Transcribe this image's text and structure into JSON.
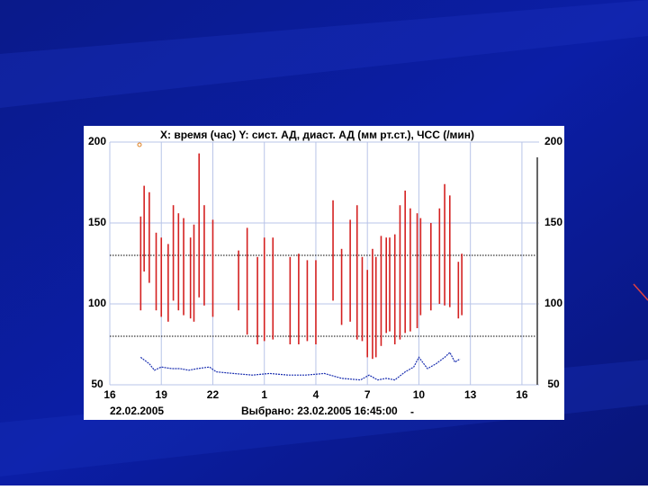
{
  "chart_data": {
    "type": "range_bar",
    "title": "X: время (час)  Y: сист. АД, диаст. АД (мм рт.ст.), ЧСС (/мин)",
    "date_left": "22.02.2005",
    "selected": "Выбрано: 23.02.2005  16:45:00",
    "selected_suffix": "-",
    "xlim": [
      16,
      41
    ],
    "xticks": [
      16,
      19,
      22,
      {
        "value": 25,
        "label": "1"
      },
      {
        "value": 28,
        "label": "4"
      },
      {
        "value": 31,
        "label": "7"
      },
      {
        "value": 34,
        "label": "10"
      },
      {
        "value": 37,
        "label": "13"
      },
      {
        "value": 40,
        "label": "16"
      }
    ],
    "ylim": [
      50,
      200
    ],
    "yticks": [
      50,
      100,
      150,
      200
    ],
    "grid": true,
    "reference_lines": [
      130,
      80
    ],
    "bars": {
      "color": "#d42020",
      "x": [
        17.8,
        18.0,
        18.3,
        18.7,
        19.0,
        19.4,
        19.7,
        20.0,
        20.3,
        20.7,
        20.9,
        21.2,
        21.5,
        22.0,
        23.5,
        24.0,
        24.6,
        25.0,
        25.5,
        26.5,
        27.0,
        27.5,
        28.0,
        29.0,
        29.5,
        30.0,
        30.4,
        30.7,
        31.0,
        31.3,
        31.5,
        31.8,
        32.1,
        32.3,
        32.6,
        32.9,
        33.2,
        33.5,
        33.9,
        34.1,
        34.7,
        35.2,
        35.5,
        35.8,
        36.3,
        36.5
      ],
      "high": [
        154,
        173,
        169,
        144,
        141,
        137,
        161,
        156,
        153,
        141,
        149,
        193,
        161,
        152,
        133,
        147,
        129,
        141,
        141,
        129,
        131,
        127,
        127,
        164,
        134,
        152,
        161,
        129,
        121,
        134,
        129,
        142,
        141,
        141,
        143,
        161,
        170,
        159,
        156,
        153,
        150,
        159,
        174,
        167,
        126,
        131
      ],
      "low": [
        96,
        120,
        113,
        96,
        92,
        89,
        102,
        96,
        93,
        91,
        89,
        104,
        99,
        92,
        96,
        81,
        75,
        77,
        78,
        75,
        75,
        77,
        75,
        102,
        87,
        89,
        78,
        77,
        67,
        66,
        67,
        74,
        82,
        83,
        75,
        78,
        82,
        83,
        85,
        93,
        96,
        100,
        99,
        98,
        91,
        93
      ]
    },
    "line": {
      "color": "#1a2fb0",
      "x": [
        17.8,
        18.3,
        18.6,
        19.0,
        19.6,
        20.1,
        20.6,
        21.1,
        21.8,
        22.2,
        23.2,
        24.3,
        25.3,
        26.4,
        27.4,
        28.5,
        29.5,
        30.6,
        31.1,
        31.6,
        32.1,
        32.6,
        33.2,
        33.7,
        34.0,
        34.5,
        35.0,
        35.5,
        35.8,
        36.1,
        36.4
      ],
      "values": [
        67,
        63,
        59,
        61,
        60,
        60,
        59,
        60,
        61,
        58,
        57,
        56,
        57,
        56,
        56,
        57,
        54,
        53,
        56,
        53,
        54,
        53,
        58,
        61,
        67,
        60,
        63,
        67,
        70,
        64,
        66
      ]
    }
  }
}
